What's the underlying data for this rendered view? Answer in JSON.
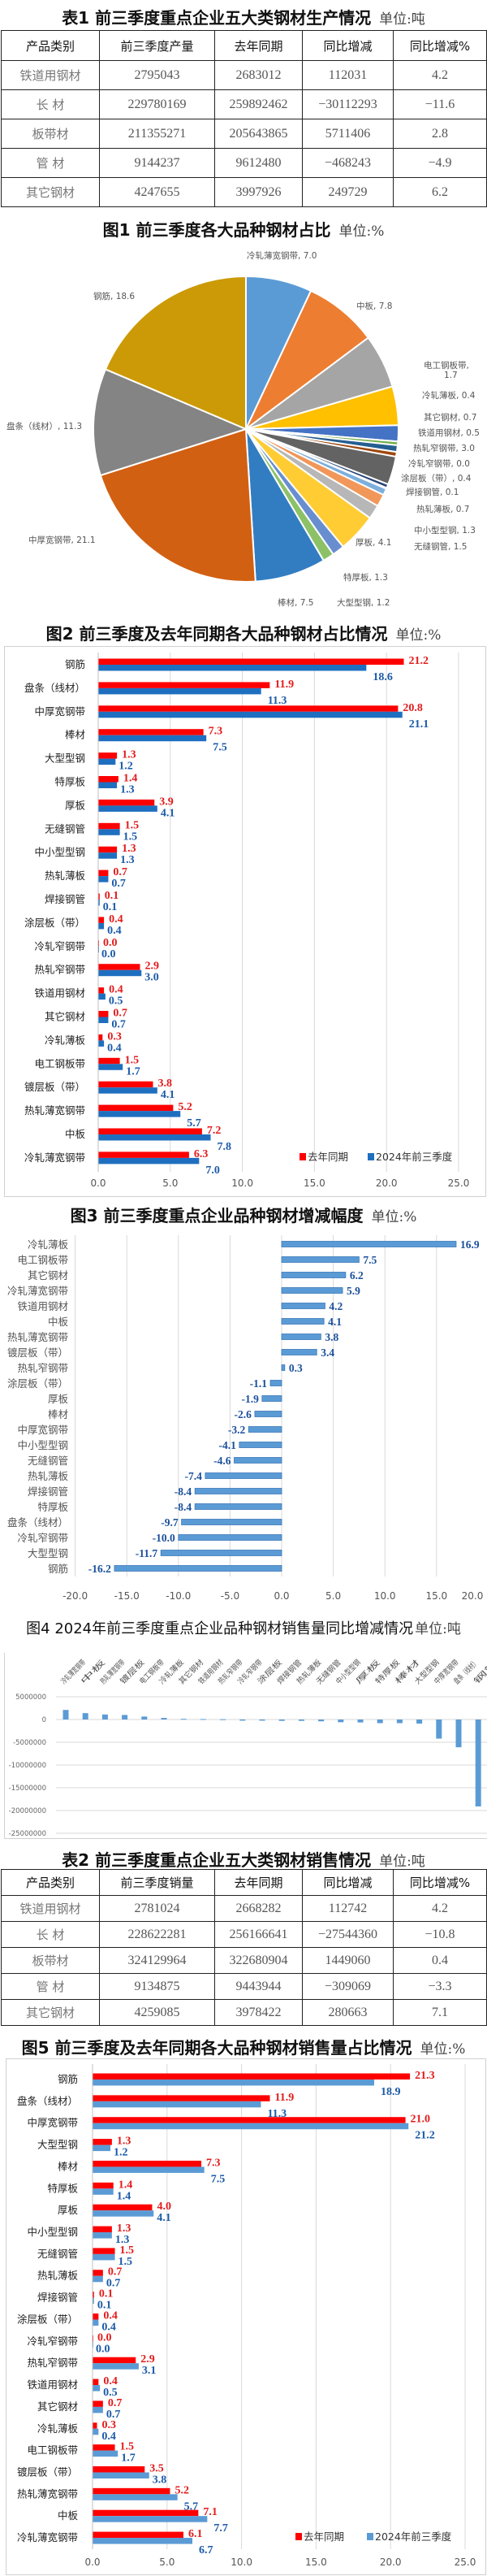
{
  "table1": {
    "title": "表1 前三季度重点企业五大类钢材生产情况",
    "unit": "单位:吨",
    "headers": [
      "产品类别",
      "前三季度产量",
      "去年同期",
      "同比增减",
      "同比增减%"
    ],
    "rows": [
      [
        "铁道用钢材",
        "2795043",
        "2683012",
        "112031",
        "4.2"
      ],
      [
        "长 材",
        "229780169",
        "259892462",
        "−30112293",
        "−11.6"
      ],
      [
        "板带材",
        "211355271",
        "205643865",
        "5711406",
        "2.8"
      ],
      [
        "管 材",
        "9144237",
        "9612480",
        "−468243",
        "−4.9"
      ],
      [
        "其它钢材",
        "4247655",
        "3997926",
        "249729",
        "6.2"
      ]
    ]
  },
  "table2": {
    "title": "表2 前三季度重点企业五大类钢材销售情况",
    "unit": "单位:吨",
    "headers": [
      "产品类别",
      "前三季度销量",
      "去年同期",
      "同比增减",
      "同比增减%"
    ],
    "rows": [
      [
        "铁道用钢材",
        "2781024",
        "2668282",
        "112742",
        "4.2"
      ],
      [
        "长 材",
        "228622281",
        "256166641",
        "−27544360",
        "−10.8"
      ],
      [
        "板带材",
        "324129964",
        "322680904",
        "1449060",
        "0.4"
      ],
      [
        "管 材",
        "9134875",
        "9443944",
        "−309069",
        "−3.3"
      ],
      [
        "其它钢材",
        "4259085",
        "3978422",
        "280663",
        "7.1"
      ]
    ]
  },
  "chart_data": [
    {
      "type": "pie",
      "title": "图1  前三季度各大品种钢材占比",
      "unit": "单位:%",
      "slices": [
        {
          "label": "冷轧薄宽钢带",
          "value": 7.0,
          "color": "#5b9bd5"
        },
        {
          "label": "中板",
          "value": 7.8,
          "color": "#ed7d31"
        },
        {
          "value": 5.7,
          "color": "#a5a5a5"
        },
        {
          "value": 4.1,
          "color": "#ffc000"
        },
        {
          "label": "电工钢板带",
          "value": 1.7,
          "color": "#4472c4"
        },
        {
          "label": "冷轧薄板",
          "value": 0.4,
          "color": "#70ad47"
        },
        {
          "label": "其它钢材",
          "value": 0.7,
          "color": "#255e91"
        },
        {
          "label": "铁道用钢材",
          "value": 0.5,
          "color": "#9e480e"
        },
        {
          "label": "热轧窄钢带",
          "value": 3.0,
          "color": "#636363"
        },
        {
          "label": "冷轧窄钢带",
          "value": 0.0,
          "color": "#997300"
        },
        {
          "label": "涂层板（带）",
          "value": 0.4,
          "color": "#264478"
        },
        {
          "label": "焊接钢管",
          "value": 0.1,
          "color": "#43682b"
        },
        {
          "label": "热轧薄板",
          "value": 0.7,
          "color": "#7cafdd"
        },
        {
          "label": "中小型型钢",
          "value": 1.3,
          "color": "#f1975a"
        },
        {
          "label": "无缝钢管",
          "value": 1.5,
          "color": "#b7b7b7"
        },
        {
          "label": "厚板",
          "value": 4.1,
          "color": "#ffcd33"
        },
        {
          "label": "特厚板",
          "value": 1.3,
          "color": "#698ed0"
        },
        {
          "label": "大型型钢",
          "value": 1.2,
          "color": "#8cc168"
        },
        {
          "label": "棒材",
          "value": 7.5,
          "color": "#327dc2"
        },
        {
          "label": "中厚宽钢带",
          "value": 21.1,
          "color": "#d26012"
        },
        {
          "label": "盘条（线材）",
          "value": 11.3,
          "color": "#848484"
        },
        {
          "label": "钢筋",
          "value": 18.6,
          "color": "#cc9a06"
        }
      ]
    },
    {
      "type": "bar",
      "orientation": "horizontal",
      "title": "图2 前三季度及去年同期各大品种钢材占比情况",
      "unit": "单位:%",
      "categories": [
        "钢筋",
        "盘条（线材）",
        "中厚宽钢带",
        "棒材",
        "大型型钢",
        "特厚板",
        "厚板",
        "无缝钢管",
        "中小型型钢",
        "热轧薄板",
        "焊接钢管",
        "涂层板（带）",
        "冷轧窄钢带",
        "热轧窄钢带",
        "铁道用钢材",
        "其它钢材",
        "冷轧薄板",
        "电工钢板带",
        "镀层板（带）",
        "热轧薄宽钢带",
        "中板",
        "冷轧薄宽钢带"
      ],
      "series": [
        {
          "name": "去年同期",
          "color": "#ff0000",
          "label_color": "#e31b1b",
          "values": [
            21.2,
            11.9,
            20.8,
            7.3,
            1.3,
            1.4,
            3.9,
            1.5,
            1.3,
            0.7,
            0.1,
            0.4,
            0.0,
            2.9,
            0.4,
            0.7,
            0.3,
            1.5,
            3.8,
            5.2,
            7.2,
            6.3
          ]
        },
        {
          "name": "2024年前三季度",
          "color": "#1f6fc0",
          "label_color": "#1a5aa8",
          "values": [
            18.6,
            11.3,
            21.1,
            7.5,
            1.2,
            1.3,
            4.1,
            1.5,
            1.3,
            0.7,
            0.1,
            0.4,
            0.0,
            3.0,
            0.5,
            0.7,
            0.4,
            1.7,
            4.1,
            5.7,
            7.8,
            7.0
          ]
        }
      ],
      "xlim": [
        0,
        25
      ],
      "xticks": [
        0,
        5,
        10,
        15,
        20,
        25
      ],
      "grid": true,
      "legend": "bottom-right"
    },
    {
      "type": "bar",
      "orientation": "horizontal",
      "title": "图3  前三季度重点企业品种钢材增减幅度",
      "unit": "单位:%",
      "categories": [
        "冷轧薄板",
        "电工钢板带",
        "其它钢材",
        "冷轧薄宽钢带",
        "铁道用钢材",
        "中板",
        "热轧薄宽钢带",
        "镀层板（带）",
        "热轧窄钢带",
        "涂层板（带）",
        "厚板",
        "棒材",
        "中厚宽钢带",
        "中小型型钢",
        "无缝钢管",
        "热轧薄板",
        "焊接钢管",
        "特厚板",
        "盘条（线材）",
        "冷轧窄钢带",
        "大型型钢",
        "钢筋"
      ],
      "values": [
        16.9,
        7.5,
        6.2,
        5.9,
        4.2,
        4.1,
        3.8,
        3.4,
        0.3,
        -1.1,
        -1.9,
        -2.6,
        -3.2,
        -4.1,
        -4.6,
        -7.4,
        -8.4,
        -8.4,
        -9.7,
        -10.0,
        -11.7,
        -16.2
      ],
      "color": "#5b9bd5",
      "label_color": "#1a4f9c",
      "xlim": [
        -20,
        20
      ],
      "xticks": [
        -20,
        -15,
        -10,
        -5,
        0,
        5,
        10,
        15,
        20
      ],
      "grid": true
    },
    {
      "type": "bar",
      "orientation": "vertical",
      "title": "图4  2024年前三季度重点企业品种钢材销售量同比增减情况",
      "unit": "单位:吨",
      "categories": [
        "冷轧薄宽钢带",
        "中板",
        "热轧薄宽钢带",
        "镀层板",
        "电工钢板带",
        "冷轧薄板",
        "其它钢材",
        "铁道用钢材",
        "热轧窄钢带",
        "冷轧窄钢带",
        "涂层板",
        "焊接钢管",
        "热轧薄板",
        "无缝钢管",
        "中小型型钢",
        "厚板",
        "特厚板",
        "棒材",
        "大型型钢",
        "中厚宽钢带",
        "盘条（线材）",
        "钢筋"
      ],
      "values": [
        2100000,
        1400000,
        1100000,
        1000000,
        650000,
        350000,
        150000,
        100000,
        50000,
        -250000,
        -250000,
        -300000,
        -300000,
        -400000,
        -600000,
        -650000,
        -800000,
        -800000,
        -900000,
        -4200000,
        -6100000,
        -19100000
      ],
      "color": "#5b9bd5",
      "ylim": [
        -25000000,
        5000000
      ],
      "yticks": [
        5000000,
        0,
        -5000000,
        -10000000,
        -15000000,
        -20000000,
        -25000000
      ],
      "grid": true
    },
    {
      "type": "bar",
      "orientation": "horizontal",
      "title": "图5 前三季度及去年同期各大品种钢材销售量占比情况",
      "unit": "单位:%",
      "categories": [
        "钢筋",
        "盘条（线材）",
        "中厚宽钢带",
        "大型型钢",
        "棒材",
        "特厚板",
        "厚板",
        "中小型型钢",
        "无缝钢管",
        "热轧薄板",
        "焊接钢管",
        "涂层板（带）",
        "冷轧窄钢带",
        "热轧窄钢带",
        "铁道用钢材",
        "其它钢材",
        "冷轧薄板",
        "电工钢板带",
        "镀层板（带）",
        "热轧薄宽钢带",
        "中板",
        "冷轧薄宽钢带"
      ],
      "series": [
        {
          "name": "去年同期",
          "color": "#ff0000",
          "label_color": "#e31b1b",
          "values": [
            21.3,
            11.9,
            21.0,
            1.3,
            7.3,
            1.4,
            4.0,
            1.3,
            1.5,
            0.7,
            0.1,
            0.4,
            0.0,
            2.9,
            0.4,
            0.7,
            0.3,
            1.5,
            3.5,
            5.2,
            7.1,
            6.1
          ]
        },
        {
          "name": "2024年前三季度",
          "color": "#5b9bd5",
          "label_color": "#1a5aa8",
          "values": [
            18.9,
            11.3,
            21.2,
            1.2,
            7.5,
            1.4,
            4.1,
            1.3,
            1.5,
            0.7,
            0.1,
            0.4,
            0.0,
            3.1,
            0.5,
            0.7,
            0.4,
            1.7,
            3.8,
            5.7,
            7.7,
            6.7
          ]
        }
      ],
      "xlim": [
        0,
        25
      ],
      "xticks": [
        0,
        5,
        10,
        15,
        20,
        25
      ],
      "grid": true,
      "legend": "bottom-right"
    }
  ]
}
